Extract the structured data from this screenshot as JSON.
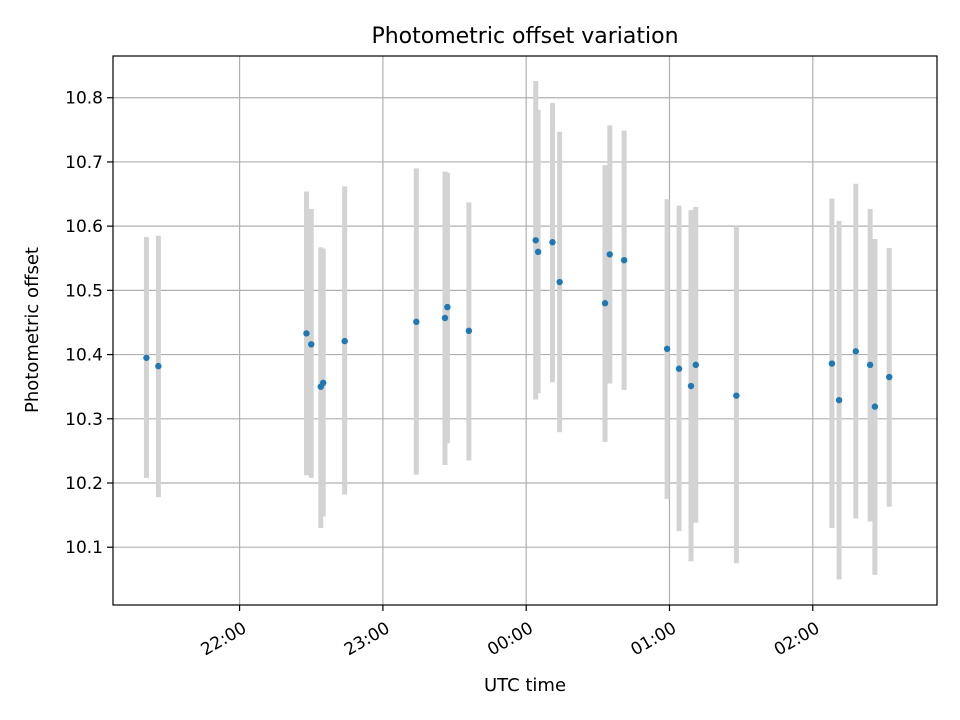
{
  "chart_data": {
    "type": "scatter",
    "title": "Photometric offset variation",
    "xlabel": "UTC time",
    "ylabel": "Photometric offset",
    "x_axis_type": "time",
    "xlim": [
      "21:07",
      "02:52"
    ],
    "ylim": [
      10.01,
      10.865
    ],
    "x_ticks": [
      "22:00",
      "23:00",
      "00:00",
      "01:00",
      "02:00"
    ],
    "y_ticks": [
      "10.1",
      "10.2",
      "10.3",
      "10.4",
      "10.5",
      "10.6",
      "10.7",
      "10.8"
    ],
    "grid": true,
    "point_color": "#1f77b4",
    "errorbar_color": "#d3d3d3",
    "points": [
      {
        "t": "21:21",
        "y": 10.395,
        "lo": 10.208,
        "hi": 10.583
      },
      {
        "t": "21:26",
        "y": 10.382,
        "lo": 10.178,
        "hi": 10.585
      },
      {
        "t": "22:28",
        "y": 10.433,
        "lo": 10.212,
        "hi": 10.654
      },
      {
        "t": "22:30",
        "y": 10.416,
        "lo": 10.208,
        "hi": 10.627
      },
      {
        "t": "22:34",
        "y": 10.35,
        "lo": 10.13,
        "hi": 10.567
      },
      {
        "t": "22:35",
        "y": 10.356,
        "lo": 10.148,
        "hi": 10.565
      },
      {
        "t": "22:44",
        "y": 10.421,
        "lo": 10.182,
        "hi": 10.662
      },
      {
        "t": "23:14",
        "y": 10.451,
        "lo": 10.213,
        "hi": 10.69
      },
      {
        "t": "23:26",
        "y": 10.457,
        "lo": 10.228,
        "hi": 10.685
      },
      {
        "t": "23:27",
        "y": 10.474,
        "lo": 10.262,
        "hi": 10.683
      },
      {
        "t": "23:36",
        "y": 10.437,
        "lo": 10.235,
        "hi": 10.637
      },
      {
        "t": "00:04",
        "y": 10.578,
        "lo": 10.33,
        "hi": 10.826
      },
      {
        "t": "00:05",
        "y": 10.56,
        "lo": 10.34,
        "hi": 10.781
      },
      {
        "t": "00:11",
        "y": 10.575,
        "lo": 10.357,
        "hi": 10.792
      },
      {
        "t": "00:14",
        "y": 10.513,
        "lo": 10.279,
        "hi": 10.747
      },
      {
        "t": "00:33",
        "y": 10.48,
        "lo": 10.264,
        "hi": 10.695
      },
      {
        "t": "00:35",
        "y": 10.556,
        "lo": 10.355,
        "hi": 10.757
      },
      {
        "t": "00:41",
        "y": 10.547,
        "lo": 10.345,
        "hi": 10.749
      },
      {
        "t": "00:59",
        "y": 10.409,
        "lo": 10.175,
        "hi": 10.642
      },
      {
        "t": "01:04",
        "y": 10.378,
        "lo": 10.125,
        "hi": 10.632
      },
      {
        "t": "01:09",
        "y": 10.351,
        "lo": 10.078,
        "hi": 10.625
      },
      {
        "t": "01:11",
        "y": 10.384,
        "lo": 10.138,
        "hi": 10.63
      },
      {
        "t": "01:28",
        "y": 10.336,
        "lo": 10.075,
        "hi": 10.6
      },
      {
        "t": "02:08",
        "y": 10.386,
        "lo": 10.13,
        "hi": 10.643
      },
      {
        "t": "02:11",
        "y": 10.329,
        "lo": 10.05,
        "hi": 10.608
      },
      {
        "t": "02:18",
        "y": 10.405,
        "lo": 10.145,
        "hi": 10.666
      },
      {
        "t": "02:24",
        "y": 10.384,
        "lo": 10.14,
        "hi": 10.627
      },
      {
        "t": "02:26",
        "y": 10.319,
        "lo": 10.057,
        "hi": 10.58
      },
      {
        "t": "02:32",
        "y": 10.365,
        "lo": 10.163,
        "hi": 10.566
      }
    ]
  }
}
